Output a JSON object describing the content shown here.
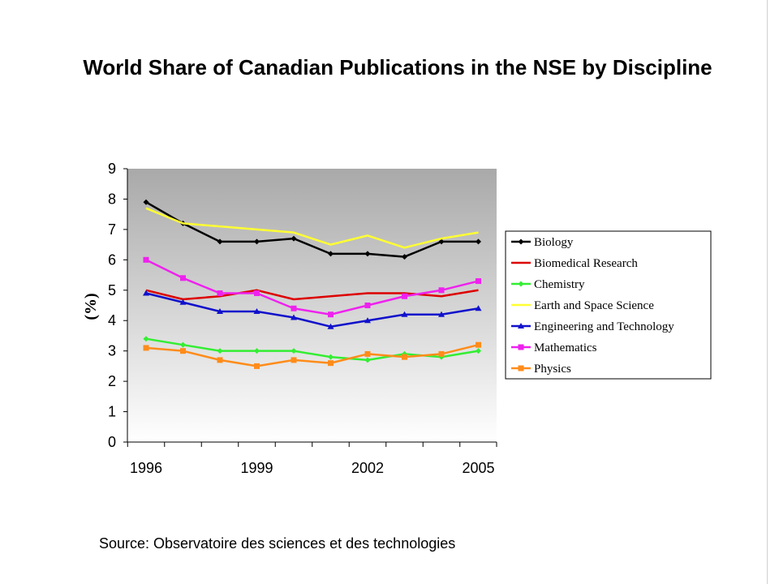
{
  "title": "World Share of Canadian Publications in the NSE by Discipline",
  "source": "Source: Observatoire des sciences et des technologies",
  "chart_data": {
    "type": "line",
    "title": "World Share of Canadian Publications in the NSE by Discipline",
    "xlabel": "",
    "ylabel": "(%)",
    "x": [
      1996,
      1997,
      1998,
      1999,
      2000,
      2001,
      2002,
      2003,
      2004,
      2005
    ],
    "x_tick_labels": [
      "1996",
      "1999",
      "2002",
      "2005"
    ],
    "y_tick_labels": [
      "0",
      "1",
      "2",
      "3",
      "4",
      "5",
      "6",
      "7",
      "8",
      "9"
    ],
    "ylim": [
      0,
      9
    ],
    "grid": false,
    "legend_position": "right",
    "plot_background": "gradient grey to white",
    "series": [
      {
        "name": "Biology",
        "color": "#000000",
        "marker": "diamond",
        "values": [
          7.9,
          7.2,
          6.6,
          6.6,
          6.7,
          6.2,
          6.2,
          6.1,
          6.6,
          6.6
        ]
      },
      {
        "name": "Biomedical Research",
        "color": "#dd0000",
        "marker": "none",
        "values": [
          5.0,
          4.7,
          4.8,
          5.0,
          4.7,
          4.8,
          4.9,
          4.9,
          4.8,
          5.0
        ]
      },
      {
        "name": "Chemistry",
        "color": "#33ee33",
        "marker": "diamond",
        "values": [
          3.4,
          3.2,
          3.0,
          3.0,
          3.0,
          2.8,
          2.7,
          2.9,
          2.8,
          3.0
        ]
      },
      {
        "name": "Earth and Space Science",
        "color": "#ffff33",
        "marker": "none",
        "values": [
          7.7,
          7.2,
          7.1,
          7.0,
          6.9,
          6.5,
          6.8,
          6.4,
          6.7,
          6.9
        ]
      },
      {
        "name": "Engineering and Technology",
        "color": "#1111cc",
        "marker": "triangle",
        "values": [
          4.9,
          4.6,
          4.3,
          4.3,
          4.1,
          3.8,
          4.0,
          4.2,
          4.2,
          4.4
        ]
      },
      {
        "name": "Mathematics",
        "color": "#ee22ee",
        "marker": "square",
        "values": [
          6.0,
          5.4,
          4.9,
          4.9,
          4.4,
          4.2,
          4.5,
          4.8,
          5.0,
          5.3
        ]
      },
      {
        "name": "Physics",
        "color": "#ff8c1a",
        "marker": "square",
        "values": [
          3.1,
          3.0,
          2.7,
          2.5,
          2.7,
          2.6,
          2.9,
          2.8,
          2.9,
          3.2
        ]
      }
    ]
  }
}
